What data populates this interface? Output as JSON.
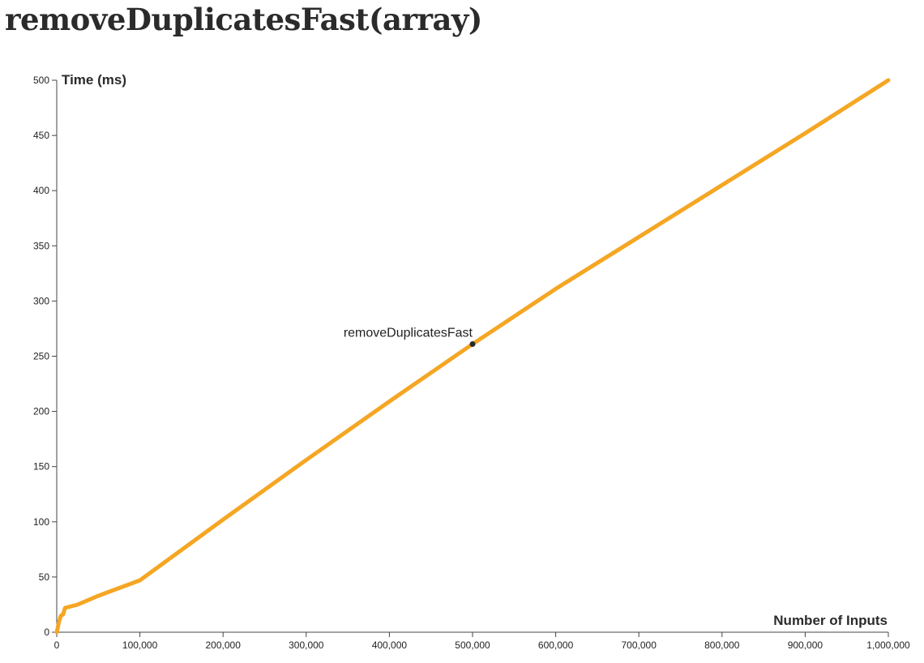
{
  "page": {
    "title": "removeDuplicatesFast(array)"
  },
  "chart_data": {
    "type": "line",
    "title": "removeDuplicatesFast(array)",
    "xlabel": "Number of Inputs",
    "ylabel": "Time (ms)",
    "xlim": [
      0,
      1000000
    ],
    "ylim": [
      0,
      500
    ],
    "x_ticks": [
      0,
      100000,
      200000,
      300000,
      400000,
      500000,
      600000,
      700000,
      800000,
      900000,
      1000000
    ],
    "x_tick_labels": [
      "0",
      "100,000",
      "200,000",
      "300,000",
      "400,000",
      "500,000",
      "600,000",
      "700,000",
      "800,000",
      "900,000",
      "1,000,000"
    ],
    "y_ticks": [
      0,
      50,
      100,
      150,
      200,
      250,
      300,
      350,
      400,
      450,
      500
    ],
    "y_tick_labels": [
      "0",
      "50",
      "100",
      "150",
      "200",
      "250",
      "300",
      "350",
      "400",
      "450",
      "500"
    ],
    "grid": false,
    "series": [
      {
        "name": "removeDuplicatesFast",
        "color": "#f5a623",
        "x": [
          0,
          1000,
          2500,
          5000,
          7500,
          10000,
          25000,
          50000,
          100000,
          200000,
          300000,
          400000,
          500000,
          600000,
          700000,
          800000,
          900000,
          1000000
        ],
        "y": [
          0,
          3,
          9,
          15,
          16,
          22,
          25,
          33,
          47,
          102,
          156,
          209,
          261,
          311,
          358,
          405,
          452,
          500
        ]
      }
    ],
    "annotation": {
      "text": "removeDuplicatesFast",
      "x": 500000,
      "y": 261,
      "marker_color": "#2b2b2b"
    }
  }
}
